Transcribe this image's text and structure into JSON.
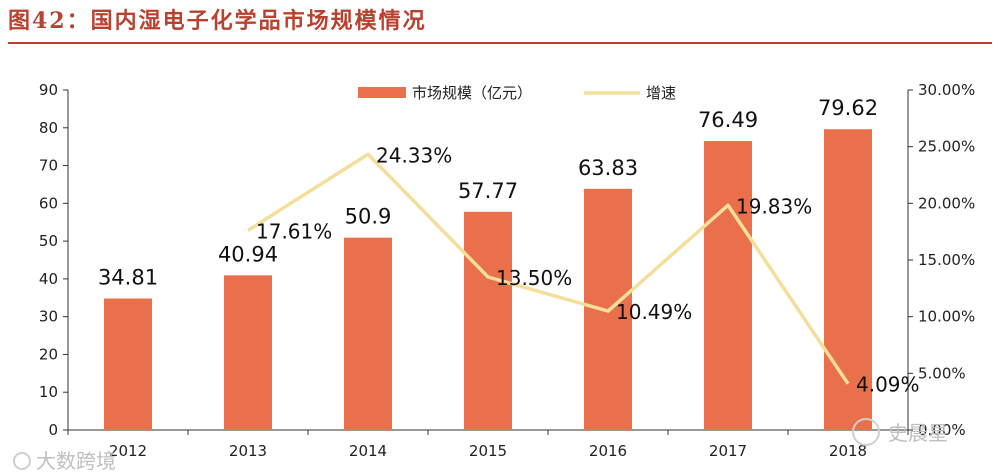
{
  "figure_title": "图42：国内湿电子化学品市场规模情况",
  "watermarks": {
    "left": "大数跨境",
    "right": "史晨星"
  },
  "colors": {
    "bar": "#e9704b",
    "line": "#f3df9a",
    "title": "#b8412f"
  },
  "chart_data": {
    "type": "bar+line",
    "title": "",
    "categories": [
      "2012",
      "2013",
      "2014",
      "2015",
      "2016",
      "2017",
      "2018"
    ],
    "series": [
      {
        "name": "市场规模（亿元）",
        "type": "bar",
        "axis": "left",
        "values": [
          34.81,
          40.94,
          50.9,
          57.77,
          63.83,
          76.49,
          79.62
        ],
        "labels": [
          "34.81",
          "40.94",
          "50.9",
          "57.77",
          "63.83",
          "76.49",
          "79.62"
        ]
      },
      {
        "name": "增速",
        "type": "line",
        "axis": "right",
        "values": [
          null,
          17.61,
          24.33,
          13.5,
          10.49,
          19.83,
          4.09
        ],
        "labels": [
          "",
          "17.61%",
          "24.33%",
          "13.50%",
          "10.49%",
          "19.83%",
          "4.09%"
        ]
      }
    ],
    "left_axis": {
      "min": 0,
      "max": 90,
      "step": 10,
      "tick_labels": [
        "0",
        "10",
        "20",
        "30",
        "40",
        "50",
        "60",
        "70",
        "80",
        "90"
      ]
    },
    "right_axis": {
      "min": 0,
      "max": 30,
      "step": 5,
      "tick_labels": [
        "0.00%",
        "5.00%",
        "10.00%",
        "15.00%",
        "20.00%",
        "25.00%",
        "30.00%"
      ]
    },
    "legend_position": "top-center",
    "grid": false
  }
}
